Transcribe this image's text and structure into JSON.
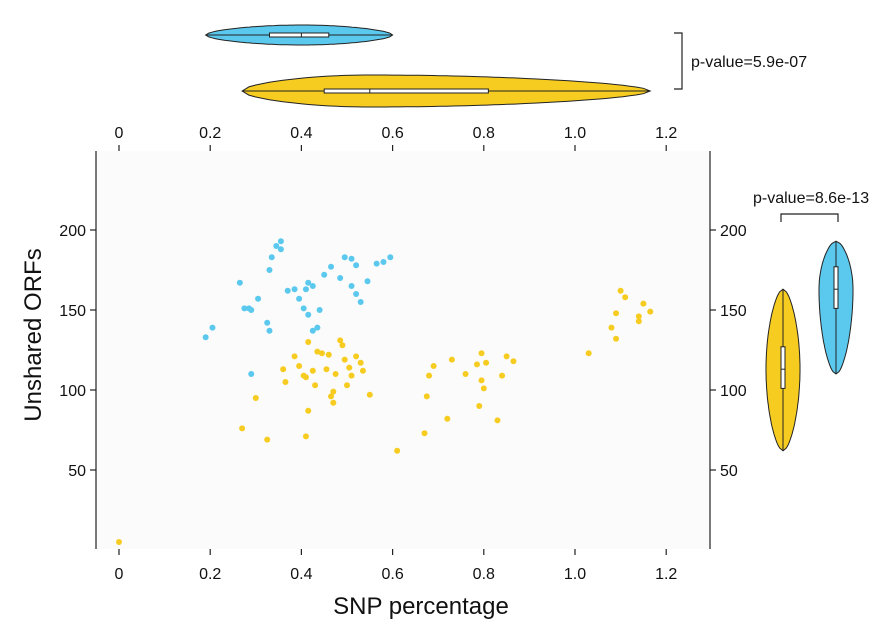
{
  "chart_data": [
    {
      "type": "scatter",
      "xlabel": "SNP percentage",
      "ylabel": "Unshared ORFs",
      "xlim": [
        -0.05,
        1.3
      ],
      "ylim": [
        0,
        250
      ],
      "x_ticks": [
        "0",
        "0.2",
        "0.4",
        "0.6",
        "0.8",
        "1.0",
        "1.2"
      ],
      "y_ticks": [
        "50",
        "100",
        "150",
        "200"
      ],
      "plot_background": "#fbfbfb",
      "series": [
        {
          "color": "#5bc8ee",
          "points": [
            [
              0.19,
              133
            ],
            [
              0.205,
              139
            ],
            [
              0.265,
              167
            ],
            [
              0.275,
              151
            ],
            [
              0.285,
              151
            ],
            [
              0.29,
              150
            ],
            [
              0.29,
              110
            ],
            [
              0.305,
              157
            ],
            [
              0.325,
              142
            ],
            [
              0.33,
              137
            ],
            [
              0.33,
              175
            ],
            [
              0.335,
              183
            ],
            [
              0.345,
              190
            ],
            [
              0.355,
              193
            ],
            [
              0.355,
              188
            ],
            [
              0.37,
              162
            ],
            [
              0.385,
              163
            ],
            [
              0.395,
              157
            ],
            [
              0.405,
              151
            ],
            [
              0.41,
              163
            ],
            [
              0.415,
              167
            ],
            [
              0.415,
              147
            ],
            [
              0.425,
              165
            ],
            [
              0.425,
              137
            ],
            [
              0.435,
              139
            ],
            [
              0.44,
              150
            ],
            [
              0.45,
              172
            ],
            [
              0.465,
              177
            ],
            [
              0.485,
              170
            ],
            [
              0.495,
              183
            ],
            [
              0.51,
              182
            ],
            [
              0.51,
              165
            ],
            [
              0.52,
              178
            ],
            [
              0.52,
              160
            ],
            [
              0.53,
              155
            ],
            [
              0.545,
              168
            ],
            [
              0.565,
              179
            ],
            [
              0.58,
              180
            ],
            [
              0.595,
              183
            ]
          ]
        },
        {
          "color": "#f7cc21",
          "points": [
            [
              0,
              5
            ],
            [
              0.27,
              76
            ],
            [
              0.3,
              95
            ],
            [
              0.325,
              69
            ],
            [
              0.36,
              113
            ],
            [
              0.365,
              105
            ],
            [
              0.385,
              121
            ],
            [
              0.395,
              115
            ],
            [
              0.405,
              109
            ],
            [
              0.41,
              108
            ],
            [
              0.41,
              71
            ],
            [
              0.415,
              87
            ],
            [
              0.415,
              130
            ],
            [
              0.425,
              112
            ],
            [
              0.43,
              103
            ],
            [
              0.435,
              124
            ],
            [
              0.445,
              123
            ],
            [
              0.455,
              113
            ],
            [
              0.46,
              122
            ],
            [
              0.465,
              96
            ],
            [
              0.47,
              92
            ],
            [
              0.47,
              99
            ],
            [
              0.475,
              110
            ],
            [
              0.485,
              131
            ],
            [
              0.49,
              128
            ],
            [
              0.495,
              119
            ],
            [
              0.5,
              103
            ],
            [
              0.505,
              114
            ],
            [
              0.51,
              109
            ],
            [
              0.52,
              121
            ],
            [
              0.53,
              117
            ],
            [
              0.535,
              112
            ],
            [
              0.55,
              97
            ],
            [
              0.61,
              62
            ],
            [
              0.67,
              73
            ],
            [
              0.675,
              96
            ],
            [
              0.68,
              109
            ],
            [
              0.69,
              115
            ],
            [
              0.72,
              82
            ],
            [
              0.73,
              119
            ],
            [
              0.76,
              110
            ],
            [
              0.785,
              116
            ],
            [
              0.79,
              90
            ],
            [
              0.795,
              123
            ],
            [
              0.795,
              106
            ],
            [
              0.8,
              101
            ],
            [
              0.805,
              117
            ],
            [
              0.83,
              81
            ],
            [
              0.84,
              109
            ],
            [
              0.85,
              121
            ],
            [
              0.865,
              118
            ],
            [
              1.03,
              123
            ],
            [
              1.08,
              139
            ],
            [
              1.09,
              132
            ],
            [
              1.09,
              148
            ],
            [
              1.1,
              162
            ],
            [
              1.11,
              158
            ],
            [
              1.14,
              146
            ],
            [
              1.14,
              143
            ],
            [
              1.15,
              154
            ],
            [
              1.165,
              149
            ]
          ]
        }
      ]
    },
    {
      "type": "violin",
      "orientation": "horizontal",
      "shares_axis": "SNP percentage",
      "annotation": "p-value=5.9e-07",
      "groups": [
        {
          "color": "#5bc8ee",
          "min": 0.19,
          "q1": 0.33,
          "median": 0.4,
          "q3": 0.46,
          "max": 0.6
        },
        {
          "color": "#f7cc21",
          "min": 0.27,
          "q1": 0.45,
          "median": 0.55,
          "q3": 0.81,
          "max": 1.165
        }
      ]
    },
    {
      "type": "violin",
      "orientation": "vertical",
      "shares_axis": "Unshared ORFs",
      "y_ticks": [
        "50",
        "100",
        "150",
        "200"
      ],
      "annotation": "p-value=8.6e-13",
      "groups": [
        {
          "color": "#f7cc21",
          "min": 62,
          "q1": 101,
          "median": 113,
          "q3": 127,
          "max": 163
        },
        {
          "color": "#5bc8ee",
          "min": 110,
          "q1": 151,
          "median": 163,
          "q3": 177,
          "max": 193
        }
      ]
    }
  ]
}
